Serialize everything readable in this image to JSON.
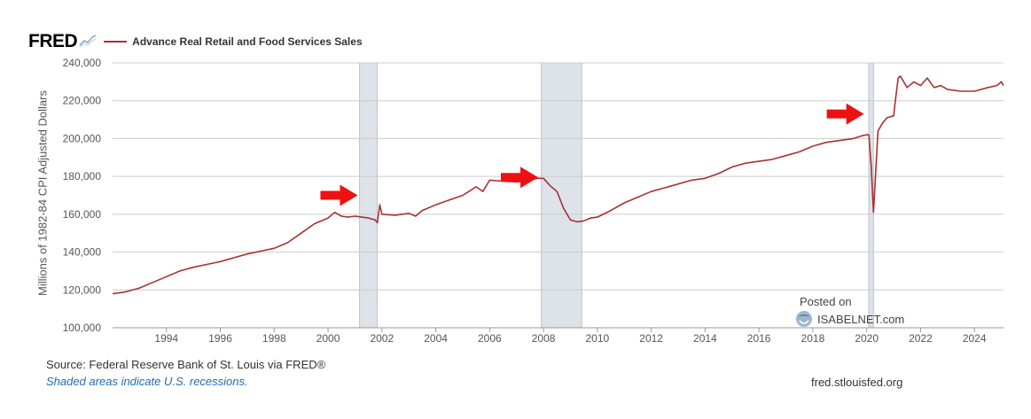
{
  "header": {
    "logo_text": "FRED",
    "series_label": "Advance Real Retail and Food Services Sales"
  },
  "footer": {
    "source": "Source: Federal Reserve Bank of St. Louis via FRED®",
    "note": "Shaded areas indicate U.S. recessions.",
    "url": "fred.stlouisfed.org"
  },
  "watermark": {
    "posted": "Posted on",
    "site": "ISABELNET.com"
  },
  "colors": {
    "series": "#a83232",
    "recession": "#dde3e9",
    "arrow": "#ee1111",
    "grid": "#cccccc",
    "note_blue": "#1f6bb5"
  },
  "chart_data": {
    "type": "line",
    "title": "Advance Real Retail and Food Services Sales",
    "ylabel": "Millions of 1982-84 CPI Adjusted Dollars",
    "xlabel": "",
    "ylim": [
      100000,
      240000
    ],
    "xlim": [
      1992.0,
      2025.08
    ],
    "y_ticks": [
      100000,
      120000,
      140000,
      160000,
      180000,
      200000,
      220000,
      240000
    ],
    "y_tick_labels": [
      "100,000",
      "120,000",
      "140,000",
      "160,000",
      "180,000",
      "200,000",
      "220,000",
      "240,000"
    ],
    "x_ticks": [
      1994,
      1996,
      1998,
      2000,
      2002,
      2004,
      2006,
      2008,
      2010,
      2012,
      2014,
      2016,
      2018,
      2020,
      2022,
      2024
    ],
    "x_tick_labels": [
      "1994",
      "1996",
      "1998",
      "2000",
      "2002",
      "2004",
      "2006",
      "2008",
      "2010",
      "2012",
      "2014",
      "2016",
      "2018",
      "2020",
      "2022",
      "2024"
    ],
    "grid": "horizontal",
    "recessions": [
      [
        2001.17,
        2001.83
      ],
      [
        2007.92,
        2009.42
      ],
      [
        2020.08,
        2020.25
      ]
    ],
    "annotations": [
      {
        "type": "arrow",
        "x": 2001.1,
        "y": 170000
      },
      {
        "type": "arrow",
        "x": 2007.8,
        "y": 179500
      },
      {
        "type": "arrow",
        "x": 2019.9,
        "y": 213000
      }
    ],
    "series": [
      {
        "name": "Advance Real Retail and Food Services Sales",
        "x": [
          1992.0,
          1992.5,
          1993.0,
          1993.5,
          1994.0,
          1994.5,
          1995.0,
          1995.5,
          1996.0,
          1996.5,
          1997.0,
          1997.5,
          1998.0,
          1998.5,
          1999.0,
          1999.5,
          2000.0,
          2000.25,
          2000.5,
          2000.75,
          2001.0,
          2001.5,
          2001.75,
          2001.83,
          2001.92,
          2002.0,
          2002.5,
          2003.0,
          2003.25,
          2003.5,
          2004.0,
          2004.5,
          2005.0,
          2005.5,
          2005.75,
          2006.0,
          2006.5,
          2007.0,
          2007.5,
          2007.75,
          2008.0,
          2008.25,
          2008.5,
          2008.75,
          2009.0,
          2009.25,
          2009.5,
          2009.75,
          2010.0,
          2010.5,
          2011.0,
          2011.5,
          2012.0,
          2012.5,
          2013.0,
          2013.5,
          2014.0,
          2014.5,
          2015.0,
          2015.5,
          2016.0,
          2016.5,
          2017.0,
          2017.5,
          2018.0,
          2018.5,
          2019.0,
          2019.5,
          2019.83,
          2020.0,
          2020.08,
          2020.17,
          2020.25,
          2020.42,
          2020.58,
          2020.75,
          2021.0,
          2021.08,
          2021.17,
          2021.25,
          2021.5,
          2021.75,
          2022.0,
          2022.25,
          2022.5,
          2022.75,
          2023.0,
          2023.5,
          2024.0,
          2024.5,
          2024.83,
          2025.0,
          2025.08
        ],
        "values": [
          118000,
          119000,
          121000,
          124000,
          127000,
          130000,
          132000,
          133500,
          135000,
          137000,
          139000,
          140500,
          142000,
          145000,
          150000,
          155000,
          158000,
          161000,
          159000,
          158500,
          159000,
          158000,
          157000,
          155500,
          165000,
          160000,
          159500,
          160500,
          159000,
          162000,
          165000,
          167500,
          170000,
          174500,
          172000,
          178000,
          177500,
          177000,
          178000,
          179000,
          179000,
          175000,
          172000,
          163000,
          157000,
          156000,
          156500,
          158000,
          158500,
          162000,
          166000,
          169000,
          172000,
          174000,
          176000,
          178000,
          179000,
          181500,
          185000,
          187000,
          188000,
          189000,
          191000,
          193000,
          196000,
          198000,
          199000,
          200000,
          201500,
          202000,
          202000,
          185000,
          161000,
          204000,
          208000,
          211000,
          212000,
          222000,
          232000,
          233000,
          227000,
          230000,
          228000,
          232000,
          227000,
          228000,
          226000,
          225000,
          225000,
          227000,
          228000,
          230000,
          228000
        ]
      }
    ]
  }
}
